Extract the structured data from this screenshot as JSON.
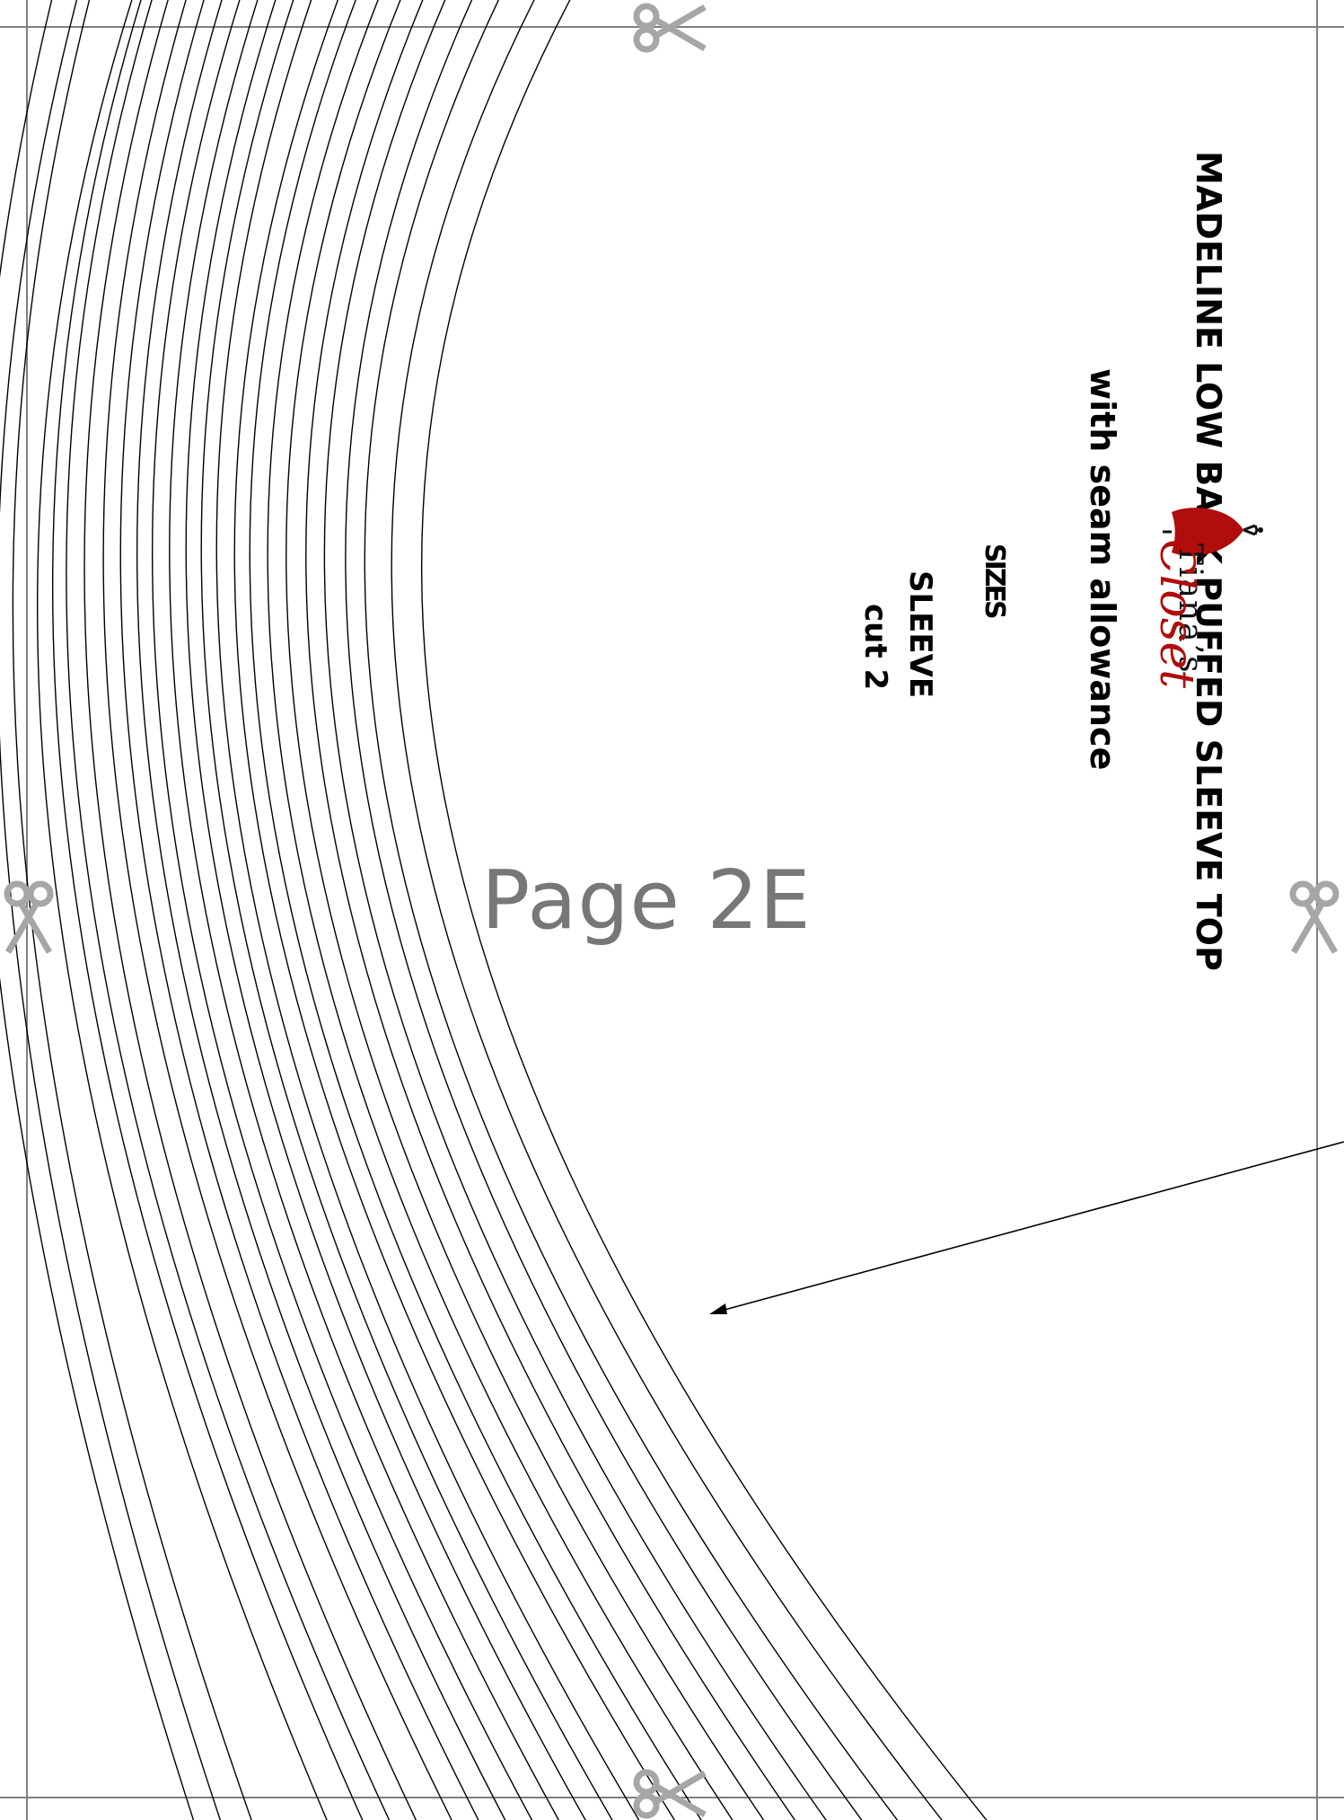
{
  "page": {
    "label": "Page 2E"
  },
  "pattern": {
    "title": "MADELINE LOW BACK PUFFED SLEEVE TOP",
    "subtitle": "with seam allowance",
    "sizes": "SIZES",
    "piece_name": "SLEEVE",
    "cut_instruction": "cut 2"
  },
  "brand": {
    "line1": "Tiana’s",
    "line2": "Closet",
    "colors": {
      "accent": "#b00d0d",
      "text": "#111111"
    }
  },
  "icons": {
    "scissors": "scissors-icon",
    "logo": "dress-form-logo-icon"
  },
  "colors": {
    "border": "#7f7f7f",
    "page_label": "#777777",
    "lines": "#000000",
    "scissors": "#a6a6a6"
  }
}
